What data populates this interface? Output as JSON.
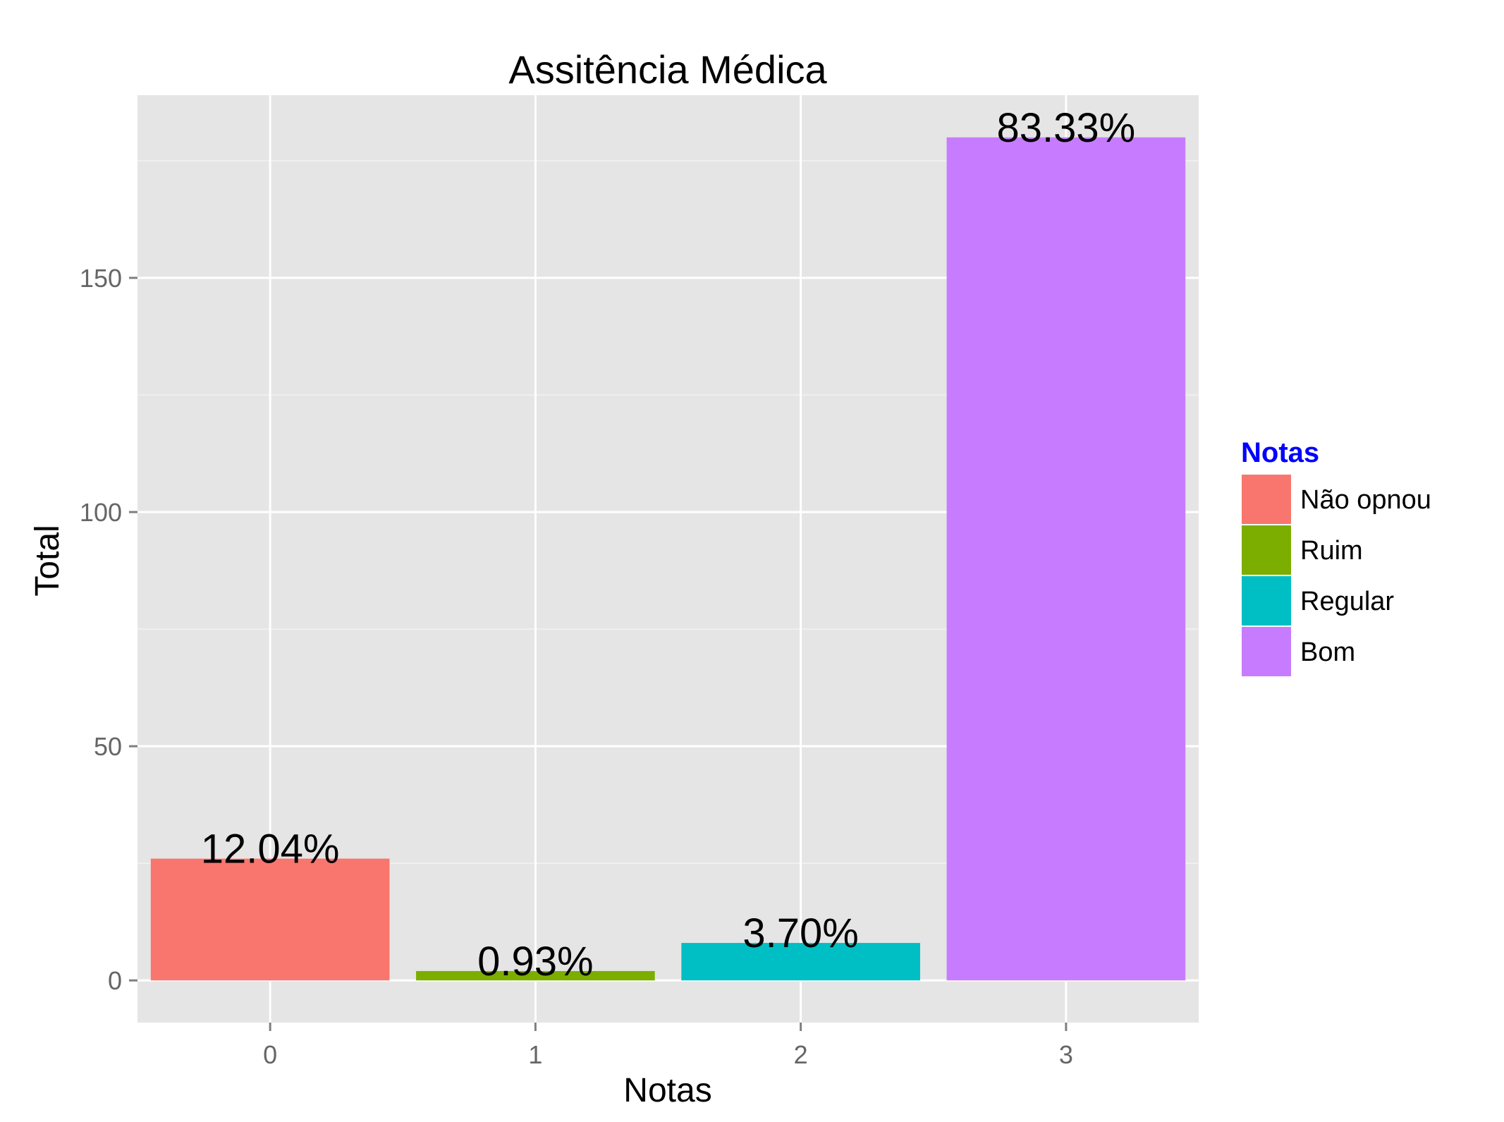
{
  "chart_data": {
    "type": "bar",
    "title": "Assitência Médica",
    "xlabel": "Notas",
    "ylabel": "Total",
    "categories": [
      "0",
      "1",
      "2",
      "3"
    ],
    "values": [
      26,
      2,
      8,
      180
    ],
    "data_labels": [
      "12.04%",
      "0.93%",
      "3.70%",
      "83.33%"
    ],
    "ylim": [
      -9,
      189
    ],
    "yticks": [
      0,
      50,
      100,
      150
    ],
    "grid": true,
    "legend": {
      "title": "Notas",
      "position": "right",
      "title_color": "#0000FF",
      "entries": [
        {
          "label": "Não opnou",
          "color": "#F8766D"
        },
        {
          "label": "Ruim",
          "color": "#7CAE00"
        },
        {
          "label": "Regular",
          "color": "#00BFC4"
        },
        {
          "label": "Bom",
          "color": "#C77CFF"
        }
      ]
    },
    "panel_background": "#E5E5E5",
    "grid_color": "#FFFFFF"
  }
}
